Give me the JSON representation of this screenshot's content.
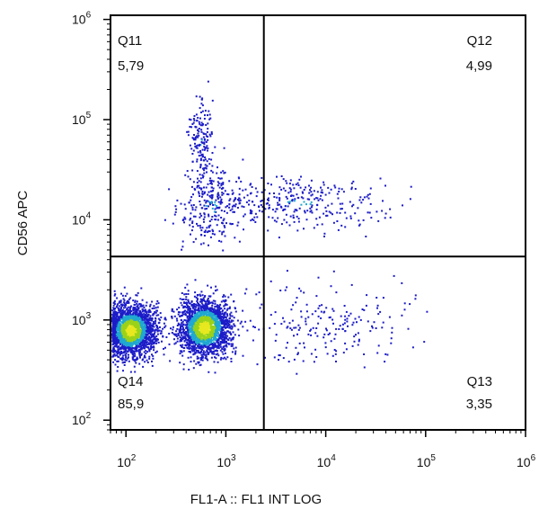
{
  "chart_data": {
    "type": "scatter",
    "subtype": "flow-cytometry-density-dot-plot",
    "xlabel": "FL1-A :: FL1 INT LOG",
    "ylabel": "CD56 APC",
    "x_scale": "log",
    "y_scale": "log",
    "xlim": [
      70,
      1000000
    ],
    "ylim": [
      80,
      1100000
    ],
    "x_ticks": [
      {
        "value": 100,
        "base": "10",
        "exp": "2"
      },
      {
        "value": 1000,
        "base": "10",
        "exp": "3"
      },
      {
        "value": 10000,
        "base": "10",
        "exp": "4"
      },
      {
        "value": 100000,
        "base": "10",
        "exp": "5"
      },
      {
        "value": 1000000,
        "base": "10",
        "exp": "6"
      }
    ],
    "y_ticks": [
      {
        "value": 100,
        "base": "10",
        "exp": "2"
      },
      {
        "value": 1000,
        "base": "10",
        "exp": "3"
      },
      {
        "value": 10000,
        "base": "10",
        "exp": "4"
      },
      {
        "value": 100000,
        "base": "10",
        "exp": "5"
      },
      {
        "value": 1000000,
        "base": "10",
        "exp": "6"
      }
    ],
    "gates": {
      "x": 2400,
      "y": 4300
    },
    "quadrants": [
      {
        "name": "Q11",
        "value": "5,79",
        "corner": "top-left"
      },
      {
        "name": "Q12",
        "value": "4,99",
        "corner": "top-right"
      },
      {
        "name": "Q13",
        "value": "3,35",
        "corner": "bottom-right"
      },
      {
        "name": "Q14",
        "value": "85,9",
        "corner": "bottom-left"
      }
    ],
    "populations": [
      {
        "x_center": 110,
        "y_center": 800,
        "x_spread": 0.12,
        "y_spread": 0.13,
        "density": "high",
        "share": 0.42
      },
      {
        "x_center": 600,
        "y_center": 850,
        "x_spread": 0.13,
        "y_spread": 0.14,
        "density": "high",
        "share": 0.4
      },
      {
        "x_center": 5000,
        "y_center": 15000,
        "x_spread": 0.45,
        "y_spread": 0.13,
        "density": "low",
        "share": 0.06
      },
      {
        "x_center": 700,
        "y_center": 14000,
        "x_spread": 0.18,
        "y_spread": 0.2,
        "density": "low",
        "share": 0.05
      },
      {
        "x_center": 10000,
        "y_center": 900,
        "x_spread": 0.4,
        "y_spread": 0.2,
        "density": "low",
        "share": 0.04
      },
      {
        "x_center": 550,
        "y_center": 60000,
        "x_spread": 0.06,
        "y_spread": 0.2,
        "density": "low",
        "share": 0.03
      }
    ],
    "colors": {
      "low": "#1c1cc8",
      "mid": "#20a8d0",
      "high": "#9ad21a",
      "peak": "#e8e820",
      "gate": "#000000"
    },
    "grid": false
  }
}
